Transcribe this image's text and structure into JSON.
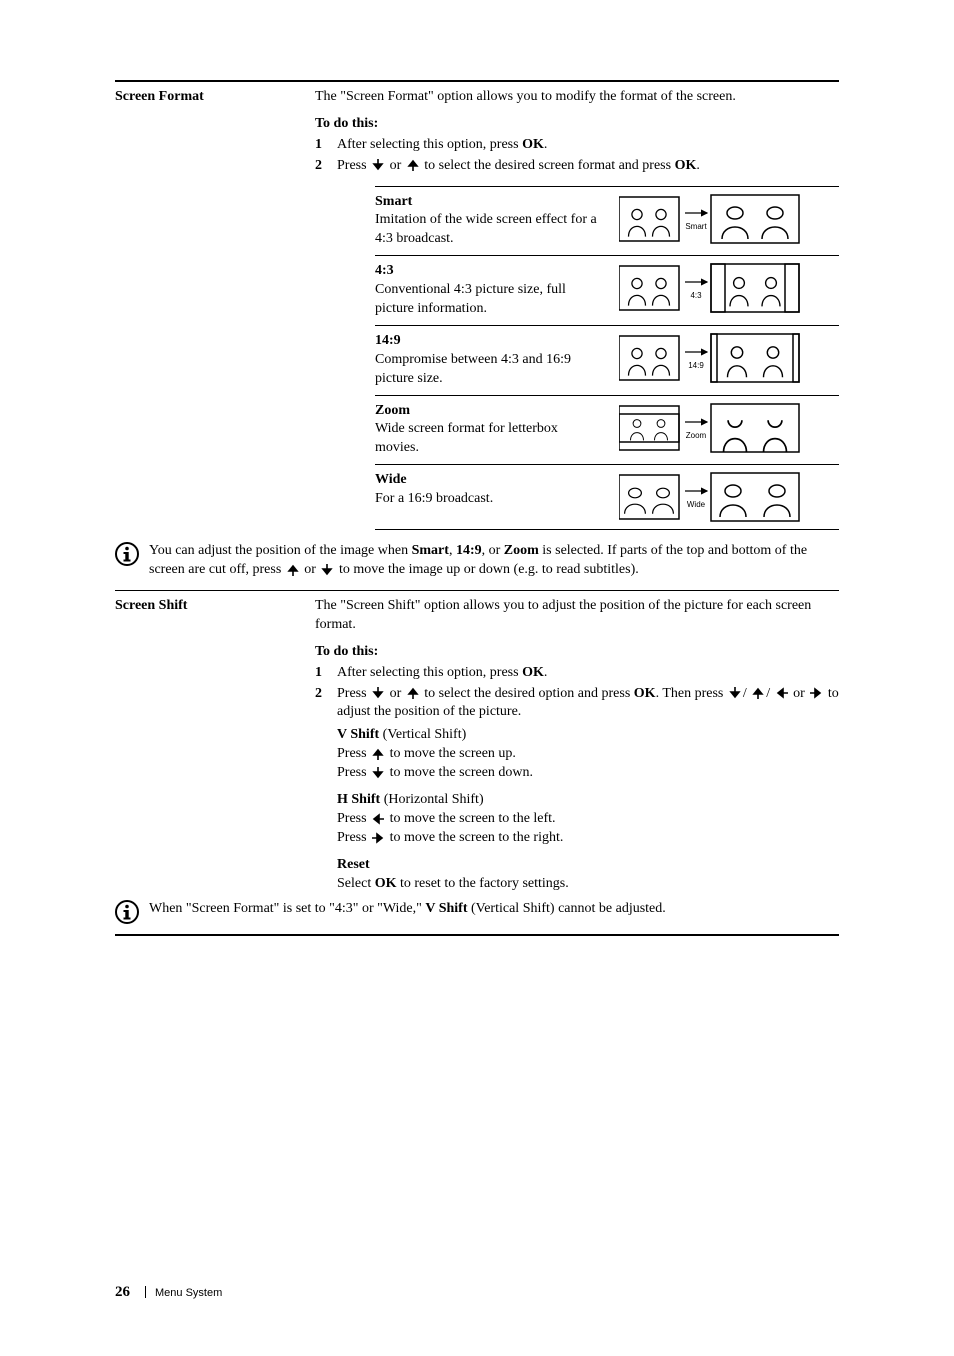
{
  "screen_format": {
    "label": "Screen Format",
    "intro": "The \"Screen Format\" option allows you to modify the format of the screen.",
    "todo": "To do this:",
    "step1_a": "After selecting this option, press ",
    "step1_ok": "OK",
    "step1_b": ".",
    "step2_a": "Press ",
    "step2_b": " or ",
    "step2_c": " to select the desired screen format and press ",
    "step2_ok": "OK",
    "step2_d": "."
  },
  "formats": [
    {
      "title": "Smart",
      "desc": "Imitation of the wide screen effect for a 4:3 broadcast.",
      "label": "Smart",
      "kind": "smart"
    },
    {
      "title": "4:3",
      "desc": "Conventional 4:3 picture size, full picture information.",
      "label": "4:3",
      "kind": "four_three"
    },
    {
      "title": "14:9",
      "desc": "Compromise between 4:3 and 16:9 picture size.",
      "label": "14:9",
      "kind": "fourteen_nine"
    },
    {
      "title": "Zoom",
      "desc": "Wide screen format for letterbox movies.",
      "label": "Zoom",
      "kind": "zoom"
    },
    {
      "title": "Wide",
      "desc": "For a 16:9 broadcast.",
      "label": "Wide",
      "kind": "wide"
    }
  ],
  "note1": {
    "a": "You can adjust the position of the image when ",
    "b1": "Smart",
    "c": ", ",
    "b2": "14:9",
    "d": ", or ",
    "b3": "Zoom",
    "e": " is selected. If parts of the top and bottom of the screen are cut off, press ",
    "f": " or ",
    "g": " to move the image up or down (e.g. to read subtitles)."
  },
  "screen_shift": {
    "label": "Screen Shift",
    "intro": "The \"Screen Shift\" option allows you to adjust the position of the picture for each screen format.",
    "todo": "To do this:",
    "step1_a": "After selecting this option, press ",
    "step1_ok": "OK",
    "step1_b": ".",
    "step2_a": "Press ",
    "step2_b": " or ",
    "step2_c": " to select the desired option and press ",
    "step2_ok1": "OK",
    "step2_d": ". Then press ",
    "step2_e": "/",
    "step2_f": "/",
    "step2_g": " or ",
    "step2_h": " to adjust the position of the picture.",
    "vshift_title": "V Shift",
    "vshift_paren": " (Vertical Shift)",
    "vshift_l1a": "Press ",
    "vshift_l1b": " to move the screen up.",
    "vshift_l2a": "Press ",
    "vshift_l2b": " to move the screen down.",
    "hshift_title": "H Shift",
    "hshift_paren": " (Horizontal Shift)",
    "hshift_l1a": "Press ",
    "hshift_l1b": " to move the screen to the left.",
    "hshift_l2a": "Press ",
    "hshift_l2b": " to move the screen to the right.",
    "reset_title": "Reset",
    "reset_a": "Select ",
    "reset_ok": "OK",
    "reset_b": " to reset to the factory settings."
  },
  "note2": {
    "a": "When \"Screen Format\" is set to \"4:3\" or \"Wide,\" ",
    "b": "V Shift",
    "c": " (Vertical Shift) cannot be adjusted."
  },
  "footer": {
    "page": "26",
    "section": "Menu System"
  },
  "style": {
    "stroke": "#000000",
    "fill_none": "none",
    "label_font_size": 8
  }
}
